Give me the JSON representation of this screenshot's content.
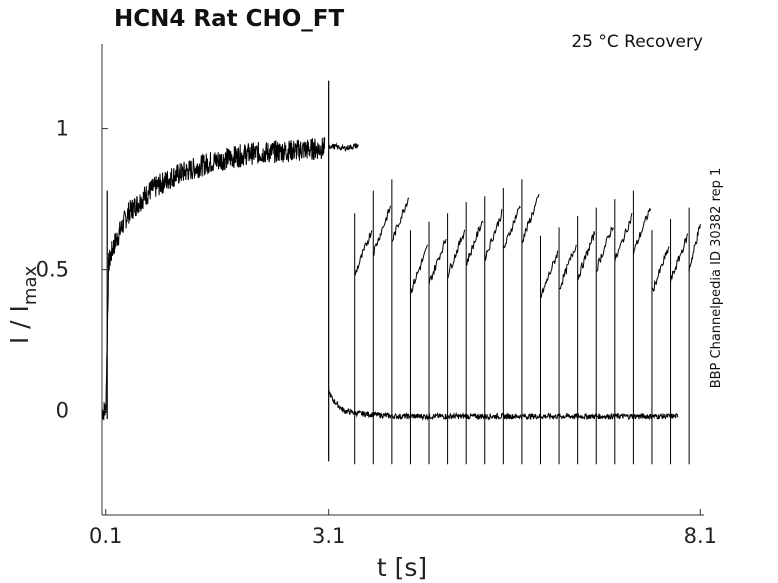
{
  "chart_data": {
    "type": "line",
    "title": "HCN4  Rat  CHO_FT",
    "subtitle": "25 °C  Recovery",
    "side_note": "BBP Channelpedia ID 30382 rep 1",
    "xlabel": "t [s]",
    "ylabel_main": "I / I",
    "ylabel_sub": "max",
    "x_ticks": [
      "0.1",
      "3.1",
      "8.1"
    ],
    "x_tick_values": [
      0.1,
      3.1,
      8.1
    ],
    "y_ticks": [
      "0",
      "0.5",
      "1"
    ],
    "y_tick_values": [
      0,
      0.5,
      1
    ],
    "xlim": [
      0.05,
      8.15
    ],
    "ylim": [
      -0.37,
      1.3
    ],
    "grid": false,
    "series": [
      {
        "kind": "activation",
        "x": [
          0.05,
          0.1,
          0.14,
          0.2,
          0.4,
          0.7,
          1.0,
          1.5,
          2.0,
          2.5,
          3.0,
          3.05
        ],
        "y": [
          0.0,
          0.0,
          0.52,
          0.58,
          0.7,
          0.78,
          0.83,
          0.88,
          0.91,
          0.92,
          0.93,
          0.93
        ]
      },
      {
        "kind": "tail_after_step",
        "x": [
          3.1,
          3.15,
          3.3,
          3.5,
          4.0,
          5.0,
          6.0,
          7.0,
          7.8
        ],
        "y": [
          0.07,
          0.04,
          0.0,
          -0.01,
          -0.02,
          -0.02,
          -0.02,
          -0.02,
          -0.02
        ]
      },
      {
        "kind": "plateau",
        "x": [
          3.1,
          3.3,
          3.5
        ],
        "y": [
          0.94,
          0.93,
          0.94
        ]
      }
    ],
    "recovery_pulse_times": [
      3.45,
      3.7,
      3.95,
      4.2,
      4.45,
      4.7,
      4.95,
      5.2,
      5.45,
      5.7,
      5.95,
      6.2,
      6.45,
      6.7,
      6.95,
      7.2,
      7.45,
      7.7,
      7.95
    ],
    "recovery_values": [
      0.58,
      0.66,
      0.7,
      0.52,
      0.55,
      0.58,
      0.62,
      0.64,
      0.67,
      0.7,
      0.5,
      0.53,
      0.57,
      0.6,
      0.63,
      0.66,
      0.52,
      0.56,
      0.6
    ],
    "line_color": "#000000"
  }
}
